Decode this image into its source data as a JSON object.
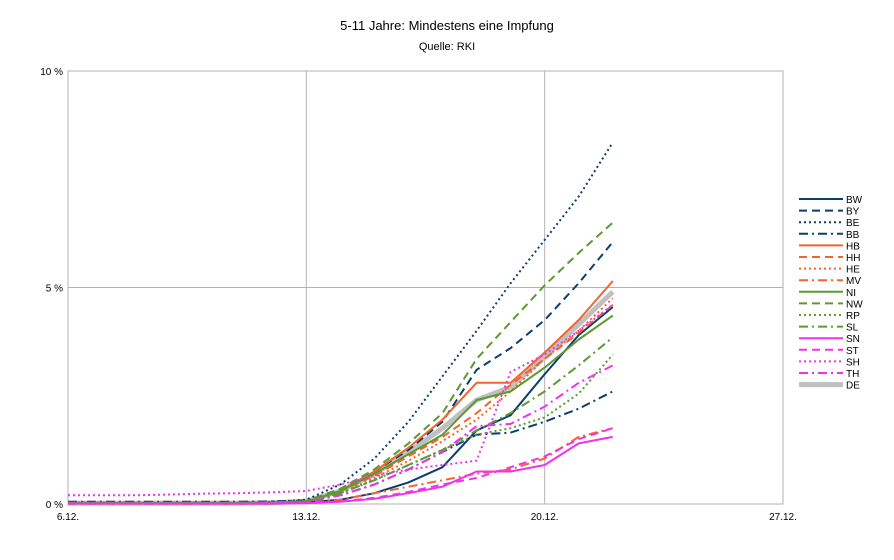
{
  "chart_data": {
    "type": "line",
    "title": "5-11 Jahre: Mindestens eine Impfung",
    "subtitle": "Quelle: RKI",
    "xlabel": "",
    "ylabel": "",
    "x_ticks": [
      "6.12.",
      "13.12.",
      "20.12.",
      "27.12."
    ],
    "x_tick_days": [
      6,
      13,
      20,
      27
    ],
    "xlim": [
      6,
      27
    ],
    "y_ticks": [
      "0 %",
      "5 %",
      "10 %"
    ],
    "y_tick_values": [
      0,
      5,
      10
    ],
    "ylim": [
      0,
      10
    ],
    "grid": true,
    "legend_position": "right",
    "x": [
      6,
      7,
      8,
      9,
      10,
      11,
      12,
      13,
      14,
      15,
      16,
      17,
      18,
      19,
      20,
      21,
      22
    ],
    "series": [
      {
        "name": "BW",
        "color": "#0b3e6f",
        "dash": "solid",
        "width": 2,
        "values": [
          0.02,
          0.02,
          0.02,
          0.02,
          0.02,
          0.02,
          0.03,
          0.04,
          0.1,
          0.25,
          0.5,
          0.85,
          1.7,
          2.05,
          3.0,
          3.9,
          4.55
        ]
      },
      {
        "name": "BY",
        "color": "#0b3e6f",
        "dash": "dashed",
        "width": 2,
        "values": [
          0.02,
          0.02,
          0.02,
          0.02,
          0.02,
          0.02,
          0.03,
          0.06,
          0.35,
          0.75,
          1.25,
          1.9,
          3.1,
          3.6,
          4.25,
          5.1,
          6.05
        ]
      },
      {
        "name": "BE",
        "color": "#0b3e6f",
        "dash": "dotted",
        "width": 2,
        "values": [
          0.03,
          0.03,
          0.03,
          0.03,
          0.03,
          0.03,
          0.05,
          0.1,
          0.45,
          1.05,
          1.9,
          2.95,
          4.0,
          5.1,
          6.1,
          7.1,
          8.35
        ]
      },
      {
        "name": "BB",
        "color": "#0b3e6f",
        "dash": "dashdot",
        "width": 2,
        "values": [
          0.05,
          0.05,
          0.05,
          0.05,
          0.05,
          0.05,
          0.06,
          0.08,
          0.2,
          0.45,
          0.8,
          1.2,
          1.6,
          1.65,
          1.9,
          2.2,
          2.6
        ]
      },
      {
        "name": "HB",
        "color": "#f26430",
        "dash": "solid",
        "width": 2,
        "values": [
          0.02,
          0.02,
          0.02,
          0.02,
          0.02,
          0.02,
          0.03,
          0.05,
          0.3,
          0.75,
          1.3,
          1.95,
          2.8,
          2.8,
          3.5,
          4.25,
          5.15
        ]
      },
      {
        "name": "HH",
        "color": "#f26430",
        "dash": "dashed",
        "width": 2,
        "values": [
          0.02,
          0.02,
          0.02,
          0.02,
          0.02,
          0.02,
          0.03,
          0.05,
          0.3,
          0.65,
          1.1,
          1.55,
          2.1,
          2.75,
          3.35,
          3.95,
          4.6
        ]
      },
      {
        "name": "HE",
        "color": "#f26430",
        "dash": "dotted",
        "width": 2,
        "values": [
          0.02,
          0.02,
          0.02,
          0.02,
          0.02,
          0.02,
          0.03,
          0.05,
          0.25,
          0.6,
          1.0,
          1.45,
          1.95,
          2.6,
          3.35,
          4.0,
          4.75
        ]
      },
      {
        "name": "MV",
        "color": "#f26430",
        "dash": "dashdot",
        "width": 2,
        "values": [
          0.01,
          0.01,
          0.01,
          0.01,
          0.01,
          0.01,
          0.01,
          0.02,
          0.1,
          0.25,
          0.4,
          0.55,
          0.7,
          0.8,
          1.05,
          1.55,
          1.75
        ]
      },
      {
        "name": "NI",
        "color": "#5b9a30",
        "dash": "solid",
        "width": 2,
        "values": [
          0.02,
          0.02,
          0.02,
          0.02,
          0.02,
          0.02,
          0.03,
          0.05,
          0.3,
          0.7,
          1.15,
          1.6,
          2.4,
          2.6,
          3.15,
          3.8,
          4.35
        ]
      },
      {
        "name": "NW",
        "color": "#5b9a30",
        "dash": "dashed",
        "width": 2,
        "values": [
          0.03,
          0.03,
          0.03,
          0.03,
          0.03,
          0.03,
          0.04,
          0.07,
          0.35,
          0.8,
          1.4,
          2.1,
          3.35,
          4.2,
          5.05,
          5.8,
          6.5
        ]
      },
      {
        "name": "RP",
        "color": "#5b9a30",
        "dash": "dotted",
        "width": 2,
        "values": [
          0.02,
          0.02,
          0.02,
          0.02,
          0.02,
          0.02,
          0.03,
          0.05,
          0.25,
          0.55,
          0.9,
          1.25,
          1.6,
          1.75,
          2.0,
          2.55,
          3.45
        ]
      },
      {
        "name": "SL",
        "color": "#5b9a30",
        "dash": "dashdot",
        "width": 2,
        "values": [
          0.03,
          0.03,
          0.03,
          0.03,
          0.03,
          0.03,
          0.04,
          0.06,
          0.25,
          0.55,
          0.9,
          1.25,
          1.7,
          2.1,
          2.6,
          3.2,
          3.85
        ]
      },
      {
        "name": "SN",
        "color": "#ee33ee",
        "dash": "solid",
        "width": 2,
        "values": [
          0.01,
          0.01,
          0.01,
          0.01,
          0.01,
          0.01,
          0.01,
          0.02,
          0.05,
          0.12,
          0.25,
          0.4,
          0.75,
          0.75,
          0.9,
          1.4,
          1.55
        ]
      },
      {
        "name": "ST",
        "color": "#ee33ee",
        "dash": "dashed",
        "width": 2,
        "values": [
          0.01,
          0.01,
          0.01,
          0.01,
          0.01,
          0.01,
          0.01,
          0.02,
          0.06,
          0.14,
          0.28,
          0.45,
          0.6,
          0.85,
          1.1,
          1.5,
          1.75
        ]
      },
      {
        "name": "SH",
        "color": "#ee33ee",
        "dash": "dotted",
        "width": 2,
        "values": [
          0.2,
          0.2,
          0.2,
          0.22,
          0.24,
          0.25,
          0.27,
          0.3,
          0.45,
          0.65,
          0.8,
          0.9,
          1.0,
          3.05,
          3.45,
          4.0,
          4.6
        ]
      },
      {
        "name": "TH",
        "color": "#ee33ee",
        "dash": "dashdot",
        "width": 2,
        "values": [
          0.01,
          0.01,
          0.01,
          0.01,
          0.01,
          0.01,
          0.02,
          0.04,
          0.2,
          0.45,
          0.8,
          1.2,
          1.8,
          1.85,
          2.25,
          2.8,
          3.2
        ]
      },
      {
        "name": "DE",
        "color": "#c0c0c0",
        "dash": "solid",
        "width": 5,
        "values": [
          0.02,
          0.02,
          0.02,
          0.02,
          0.02,
          0.02,
          0.03,
          0.06,
          0.3,
          0.7,
          1.2,
          1.75,
          2.4,
          2.7,
          3.4,
          4.15,
          4.9
        ]
      }
    ]
  }
}
